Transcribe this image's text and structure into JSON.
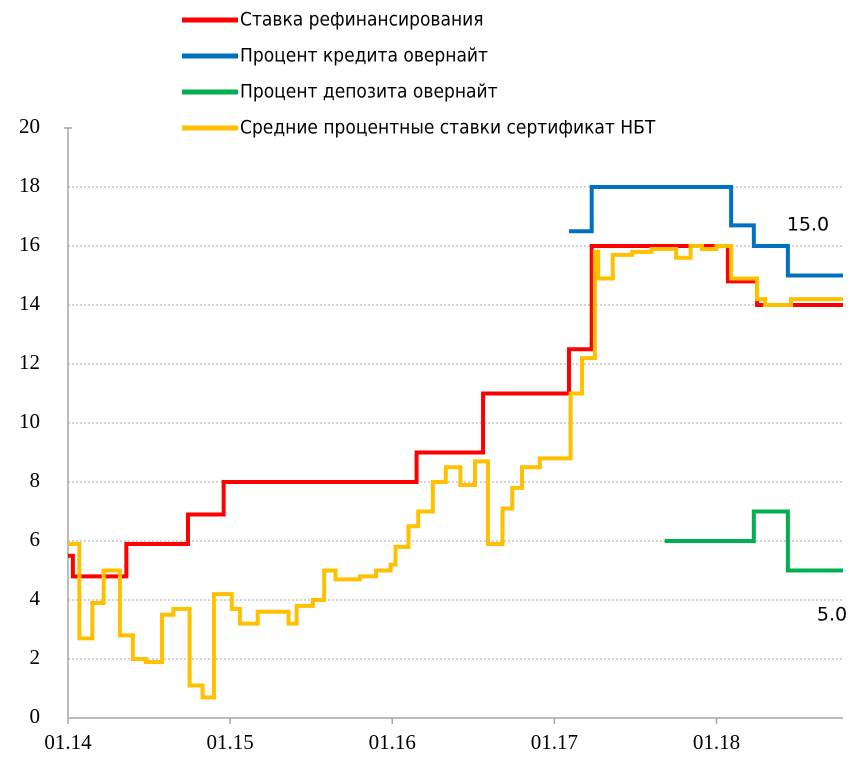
{
  "chart_data": {
    "type": "line",
    "step": true,
    "series": [
      {
        "name": "Ставка рефинансирования",
        "color": "#ff0000",
        "x": [
          14.0,
          14.03,
          14.36,
          14.74,
          14.96,
          16.15,
          16.56,
          17.09,
          17.23,
          18.07,
          18.25,
          18.78
        ],
        "values": [
          5.5,
          4.8,
          5.9,
          6.9,
          8,
          9,
          11,
          12.5,
          16,
          14.8,
          14,
          14
        ]
      },
      {
        "name": "Процент кредита овернайт",
        "color": "#0070c0",
        "x": [
          17.09,
          17.23,
          18.09,
          18.23,
          18.44,
          18.78
        ],
        "values": [
          16.5,
          18,
          16.7,
          16,
          15,
          15
        ]
      },
      {
        "name": "Процент депозита овернайт",
        "color": "#00b050",
        "x": [
          17.68,
          18.23,
          18.44,
          18.78
        ],
        "values": [
          6,
          7,
          5,
          5
        ]
      },
      {
        "name": "Средние процентные ставки сертификат НБТ",
        "color": "#ffc000",
        "x": [
          14.0,
          14.07,
          14.15,
          14.22,
          14.32,
          14.4,
          14.48,
          14.58,
          14.65,
          14.75,
          14.83,
          14.9,
          15.01,
          15.06,
          15.17,
          15.36,
          15.41,
          15.51,
          15.58,
          15.65,
          15.8,
          15.9,
          15.99,
          16.02,
          16.1,
          16.16,
          16.25,
          16.33,
          16.42,
          16.51,
          16.59,
          16.68,
          16.74,
          16.8,
          16.91,
          17.1,
          17.17,
          17.25,
          17.27,
          17.36,
          17.48,
          17.6,
          17.75,
          17.84,
          17.91,
          18.0,
          18.09,
          18.25,
          18.3,
          18.46,
          18.58,
          18.78
        ],
        "values": [
          5.9,
          2.7,
          3.9,
          5.0,
          2.8,
          2.0,
          1.9,
          3.5,
          3.7,
          1.1,
          0.7,
          4.2,
          3.7,
          3.2,
          3.6,
          3.2,
          3.8,
          4.0,
          5.0,
          4.7,
          4.8,
          5.0,
          5.2,
          5.8,
          6.5,
          7.0,
          8.0,
          8.5,
          7.9,
          8.7,
          5.9,
          7.1,
          7.8,
          8.5,
          8.8,
          11,
          12.2,
          15.8,
          14.9,
          15.7,
          15.8,
          15.9,
          15.6,
          16,
          15.9,
          16,
          14.9,
          14.2,
          14.0,
          14.2,
          14.2,
          14.2
        ]
      }
    ],
    "xlim": [
      14.0,
      18.78
    ],
    "xticks": [
      {
        "value": 14,
        "label": "01.14"
      },
      {
        "value": 15,
        "label": "01.15"
      },
      {
        "value": 16,
        "label": "01.16"
      },
      {
        "value": 17,
        "label": "01.17"
      },
      {
        "value": 18,
        "label": "01.18"
      }
    ],
    "ylim": [
      0,
      20
    ],
    "yticks": [
      0,
      2,
      4,
      6,
      8,
      10,
      12,
      14,
      16,
      18,
      20
    ],
    "grid": true,
    "annotations": [
      "15.0",
      "5.0"
    ]
  }
}
